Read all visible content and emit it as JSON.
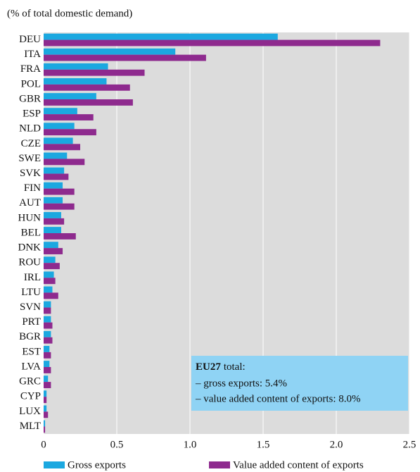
{
  "chart_data": {
    "type": "hbar",
    "subtitle": "(% of total domestic demand)",
    "categories": [
      "DEU",
      "ITA",
      "FRA",
      "POL",
      "GBR",
      "ESP",
      "NLD",
      "CZE",
      "SWE",
      "SVK",
      "FIN",
      "AUT",
      "HUN",
      "BEL",
      "DNK",
      "ROU",
      "IRL",
      "LTU",
      "SVN",
      "PRT",
      "BGR",
      "EST",
      "LVA",
      "GRC",
      "CYP",
      "LUX",
      "MLT"
    ],
    "series": [
      {
        "name": "Gross exports",
        "color": "#1ba8e0",
        "values": [
          1.6,
          0.9,
          0.44,
          0.43,
          0.36,
          0.23,
          0.21,
          0.2,
          0.16,
          0.14,
          0.13,
          0.13,
          0.12,
          0.12,
          0.1,
          0.08,
          0.07,
          0.06,
          0.05,
          0.05,
          0.05,
          0.04,
          0.04,
          0.03,
          0.02,
          0.02,
          0.01
        ]
      },
      {
        "name": "Value added content of exports",
        "color": "#8e2a8e",
        "values": [
          2.3,
          1.11,
          0.69,
          0.59,
          0.61,
          0.34,
          0.36,
          0.25,
          0.28,
          0.17,
          0.21,
          0.21,
          0.14,
          0.22,
          0.13,
          0.11,
          0.08,
          0.1,
          0.05,
          0.06,
          0.06,
          0.05,
          0.05,
          0.05,
          0.02,
          0.03,
          0.01
        ]
      }
    ],
    "xlim": [
      0,
      2.5
    ],
    "xticks": [
      0,
      0.5,
      {
        "value": 1,
        "label": "1.0"
      },
      1.5,
      {
        "value": 2,
        "label": "2.0"
      },
      2.5
    ],
    "grid": true,
    "annotation": {
      "bold": "EU27",
      "rest": "total:",
      "lines": [
        "– gross exports: 5.4%",
        "– value added content of exports: 8.0%"
      ]
    }
  }
}
